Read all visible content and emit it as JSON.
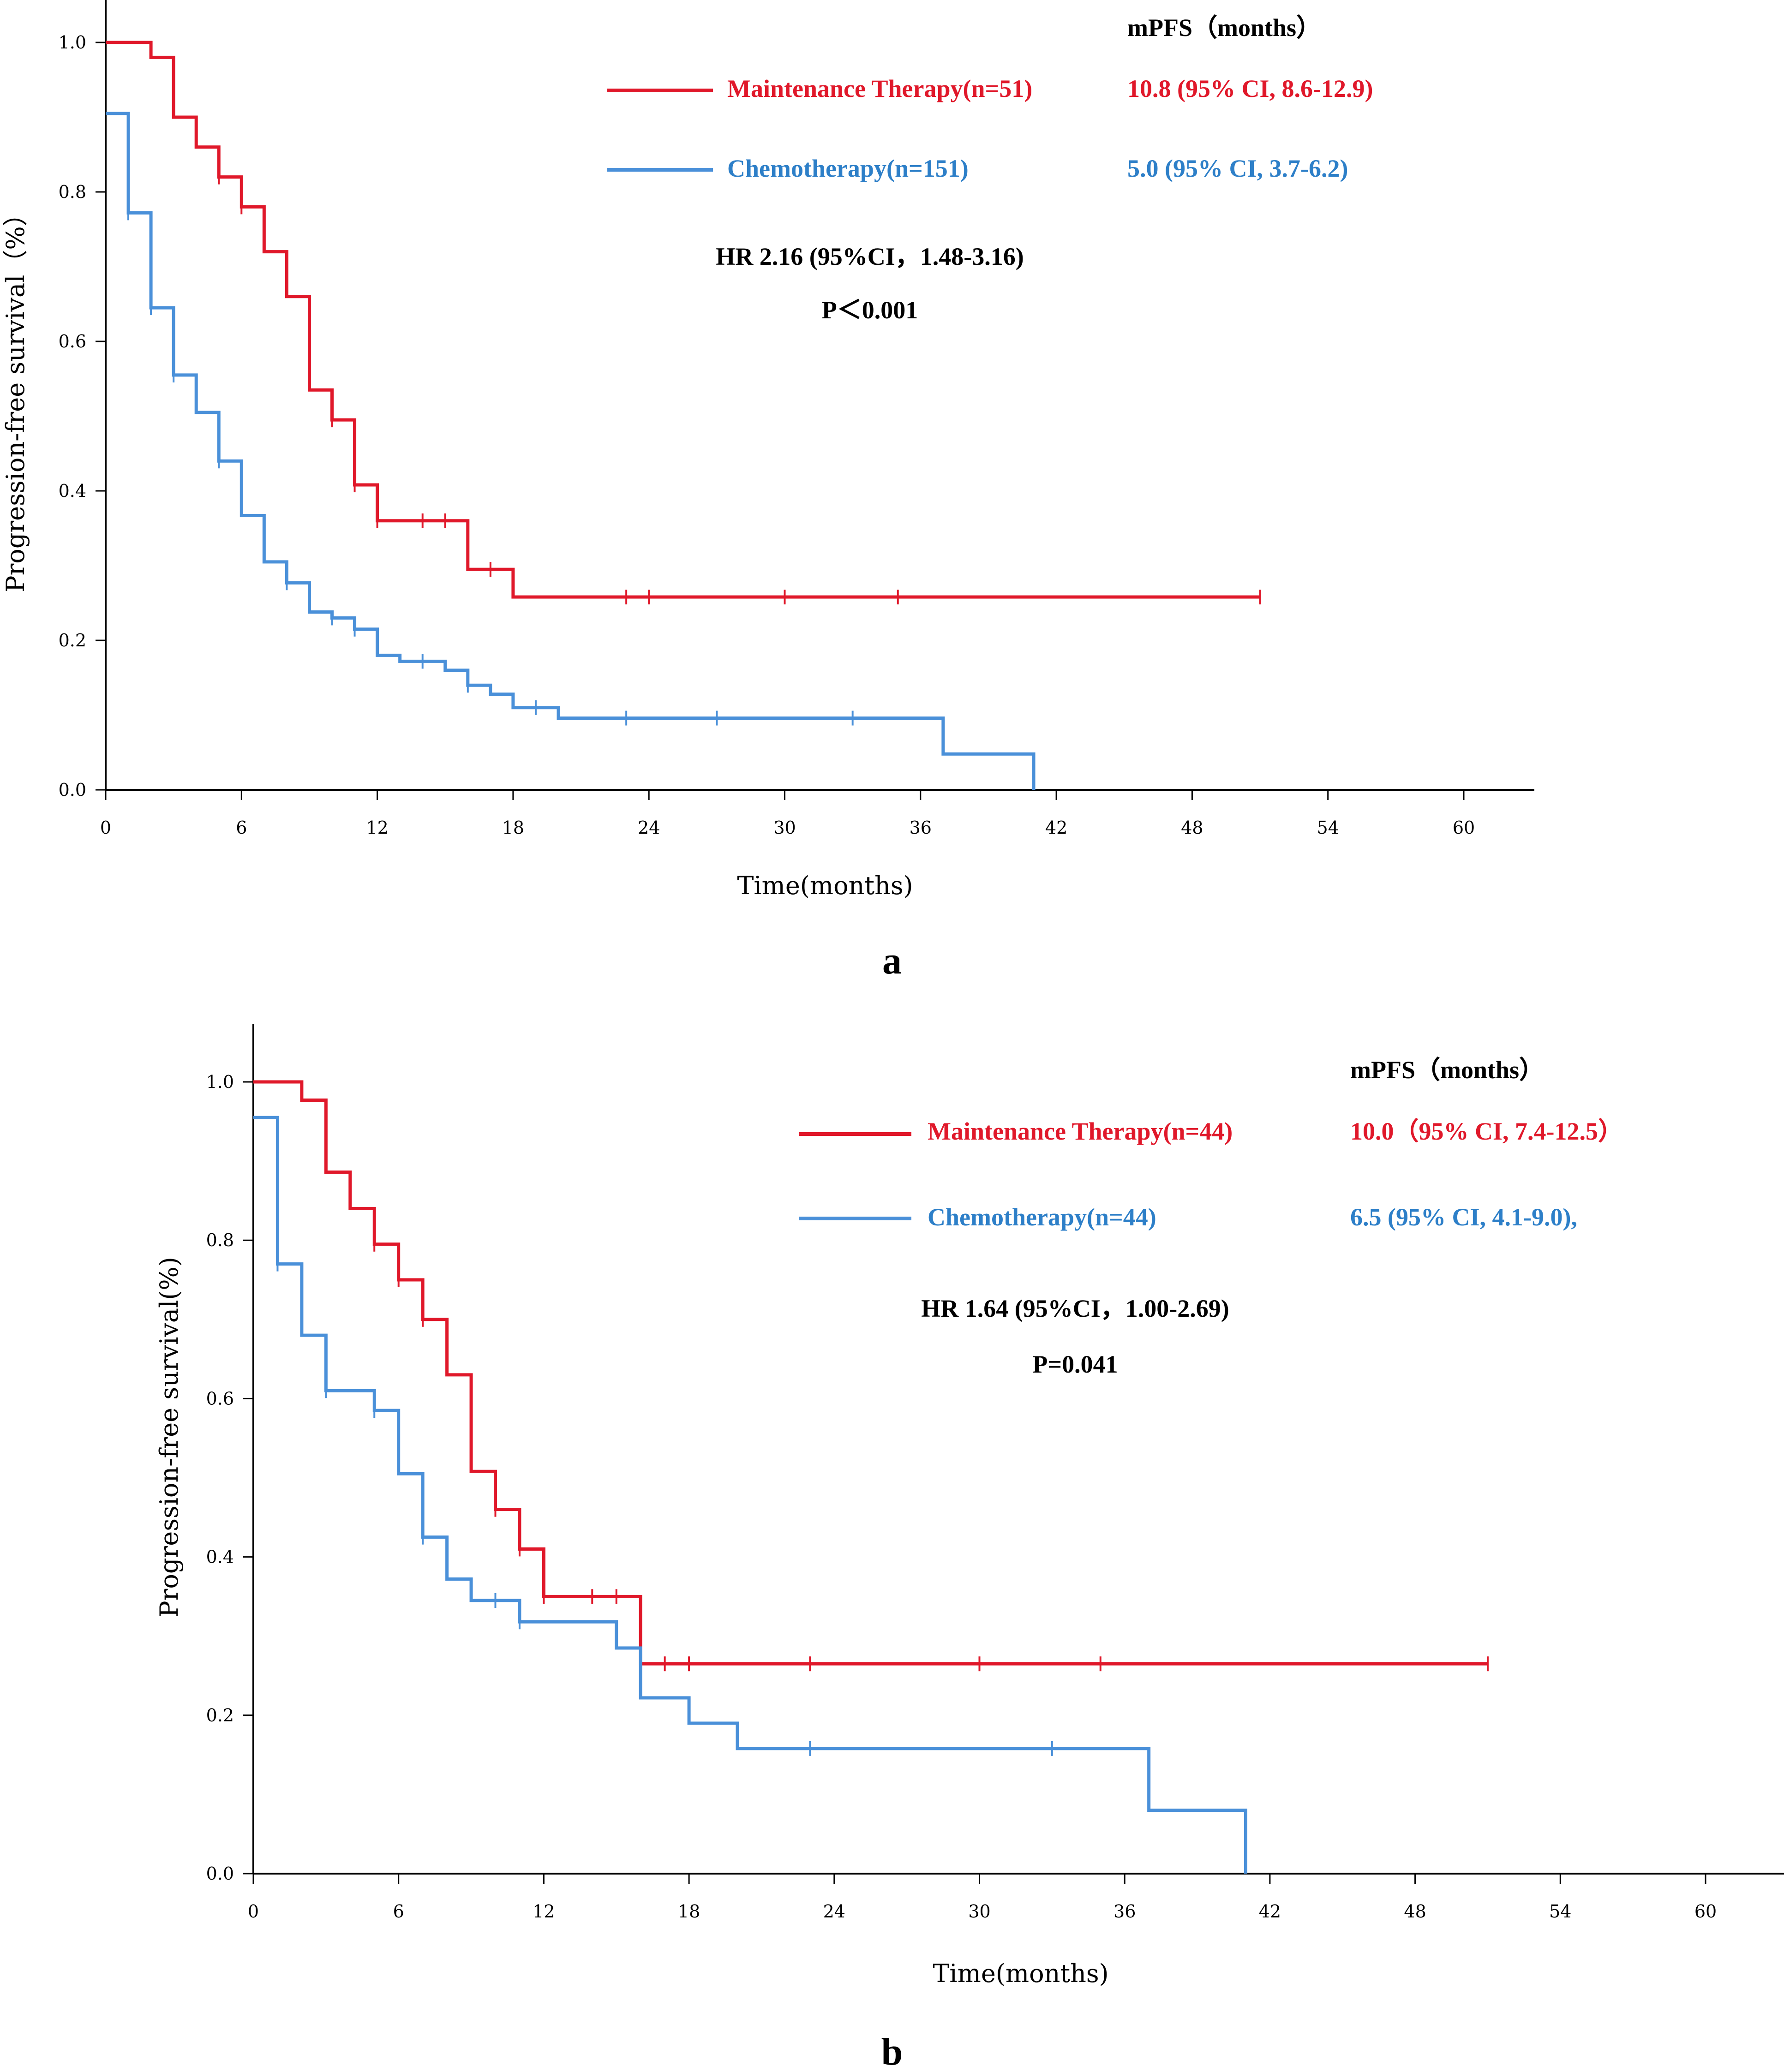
{
  "chart_data": [
    {
      "type": "line",
      "panel_label": "a",
      "xlabel": "Time(months)",
      "ylabel": "Progression-free survival（%）",
      "xlim": [
        0,
        63
      ],
      "ylim": [
        0,
        1.05
      ],
      "xticks": [
        0,
        6,
        12,
        18,
        24,
        30,
        36,
        42,
        48,
        54,
        60
      ],
      "yticks": [
        0.0,
        0.2,
        0.4,
        0.6,
        0.8,
        1.0
      ],
      "xtick_labels": [
        "0",
        "6",
        "12",
        "18",
        "24",
        "30",
        "36",
        "42",
        "48",
        "54",
        "60"
      ],
      "ytick_labels": [
        "0.0",
        "0.2",
        "0.4",
        "0.6",
        "0.8",
        "1.0"
      ],
      "legend_header": "mPFS（months）",
      "series": [
        {
          "name": "Maintenance Therapy(n=51)",
          "mpfs": "10.8 (95% CI, 8.6-12.9)",
          "color": "#e0182a",
          "steps": [
            [
              0,
              1.0
            ],
            [
              2,
              0.98
            ],
            [
              3,
              0.9
            ],
            [
              4,
              0.86
            ],
            [
              5,
              0.82
            ],
            [
              6,
              0.78
            ],
            [
              7,
              0.72
            ],
            [
              8,
              0.66
            ],
            [
              9,
              0.535
            ],
            [
              10,
              0.495
            ],
            [
              11,
              0.408
            ],
            [
              12,
              0.36
            ],
            [
              16,
              0.295
            ],
            [
              18,
              0.258
            ],
            [
              51,
              0.258
            ]
          ],
          "censored": [
            [
              5,
              0.82
            ],
            [
              6,
              0.78
            ],
            [
              10,
              0.495
            ],
            [
              11,
              0.408
            ],
            [
              12,
              0.36
            ],
            [
              14,
              0.36
            ],
            [
              15,
              0.36
            ],
            [
              17,
              0.295
            ],
            [
              23,
              0.258
            ],
            [
              24,
              0.258
            ],
            [
              30,
              0.258
            ],
            [
              35,
              0.258
            ],
            [
              51,
              0.258
            ]
          ]
        },
        {
          "name": "Chemotherapy(n=151)",
          "mpfs": "5.0 (95% CI, 3.7-6.2)",
          "color": "#4a90d9",
          "steps": [
            [
              0,
              0.905
            ],
            [
              1,
              0.772
            ],
            [
              2,
              0.645
            ],
            [
              3,
              0.555
            ],
            [
              4,
              0.505
            ],
            [
              5,
              0.44
            ],
            [
              6,
              0.367
            ],
            [
              7,
              0.305
            ],
            [
              8,
              0.277
            ],
            [
              9,
              0.238
            ],
            [
              10,
              0.23
            ],
            [
              11,
              0.215
            ],
            [
              12,
              0.18
            ],
            [
              13,
              0.172
            ],
            [
              15,
              0.16
            ],
            [
              16,
              0.14
            ],
            [
              17,
              0.128
            ],
            [
              18,
              0.11
            ],
            [
              20,
              0.096
            ],
            [
              37,
              0.048
            ],
            [
              41,
              0.0
            ]
          ],
          "censored": [
            [
              1,
              0.772
            ],
            [
              2,
              0.645
            ],
            [
              3,
              0.555
            ],
            [
              5,
              0.44
            ],
            [
              8,
              0.277
            ],
            [
              10,
              0.23
            ],
            [
              11,
              0.215
            ],
            [
              14,
              0.172
            ],
            [
              16,
              0.14
            ],
            [
              19,
              0.11
            ],
            [
              23,
              0.096
            ],
            [
              27,
              0.096
            ],
            [
              33,
              0.096
            ]
          ]
        }
      ],
      "annotations": [
        "HR 2.16 (95%CI，1.48-3.16)",
        "P＜0.001"
      ]
    },
    {
      "type": "line",
      "panel_label": "b",
      "xlabel": "Time(months)",
      "ylabel": "Progression-free survival(%)",
      "xlim": [
        0,
        63
      ],
      "ylim": [
        0,
        1.05
      ],
      "xticks": [
        0,
        6,
        12,
        18,
        24,
        30,
        36,
        42,
        48,
        54,
        60
      ],
      "yticks": [
        0.0,
        0.2,
        0.4,
        0.6,
        0.8,
        1.0
      ],
      "xtick_labels": [
        "0",
        "6",
        "12",
        "18",
        "24",
        "30",
        "36",
        "42",
        "48",
        "54",
        "60"
      ],
      "ytick_labels": [
        "0.0",
        "0.2",
        "0.4",
        "0.6",
        "0.8",
        "1.0"
      ],
      "legend_header": "mPFS（months）",
      "series": [
        {
          "name": "Maintenance Therapy(n=44)",
          "mpfs": "10.0（95% CI, 7.4-12.5）",
          "color": "#e0182a",
          "steps": [
            [
              0,
              1.0
            ],
            [
              2,
              0.977
            ],
            [
              3,
              0.886
            ],
            [
              4,
              0.84
            ],
            [
              5,
              0.795
            ],
            [
              6,
              0.75
            ],
            [
              7,
              0.7
            ],
            [
              8,
              0.63
            ],
            [
              9,
              0.508
            ],
            [
              10,
              0.46
            ],
            [
              11,
              0.41
            ],
            [
              12,
              0.35
            ],
            [
              16,
              0.265
            ],
            [
              51,
              0.265
            ]
          ],
          "censored": [
            [
              5,
              0.795
            ],
            [
              6,
              0.75
            ],
            [
              7,
              0.7
            ],
            [
              10,
              0.46
            ],
            [
              11,
              0.41
            ],
            [
              12,
              0.35
            ],
            [
              14,
              0.35
            ],
            [
              15,
              0.35
            ],
            [
              17,
              0.265
            ],
            [
              18,
              0.265
            ],
            [
              23,
              0.265
            ],
            [
              30,
              0.265
            ],
            [
              35,
              0.265
            ],
            [
              51,
              0.265
            ]
          ]
        },
        {
          "name": "Chemotherapy(n=44)",
          "mpfs": "6.5 (95% CI, 4.1-9.0),",
          "color": "#4a90d9",
          "steps": [
            [
              0,
              0.955
            ],
            [
              1,
              0.77
            ],
            [
              2,
              0.68
            ],
            [
              3,
              0.61
            ],
            [
              5,
              0.585
            ],
            [
              6,
              0.505
            ],
            [
              7,
              0.425
            ],
            [
              8,
              0.372
            ],
            [
              9,
              0.345
            ],
            [
              11,
              0.318
            ],
            [
              15,
              0.285
            ],
            [
              16,
              0.222
            ],
            [
              18,
              0.19
            ],
            [
              20,
              0.158
            ],
            [
              37,
              0.08
            ],
            [
              41,
              0.0
            ]
          ],
          "censored": [
            [
              1,
              0.77
            ],
            [
              3,
              0.61
            ],
            [
              5,
              0.585
            ],
            [
              7,
              0.425
            ],
            [
              10,
              0.345
            ],
            [
              11,
              0.318
            ],
            [
              23,
              0.158
            ],
            [
              33,
              0.158
            ]
          ]
        }
      ],
      "annotations": [
        "HR 1.64 (95%CI，1.00-2.69)",
        "P=0.041"
      ]
    }
  ]
}
